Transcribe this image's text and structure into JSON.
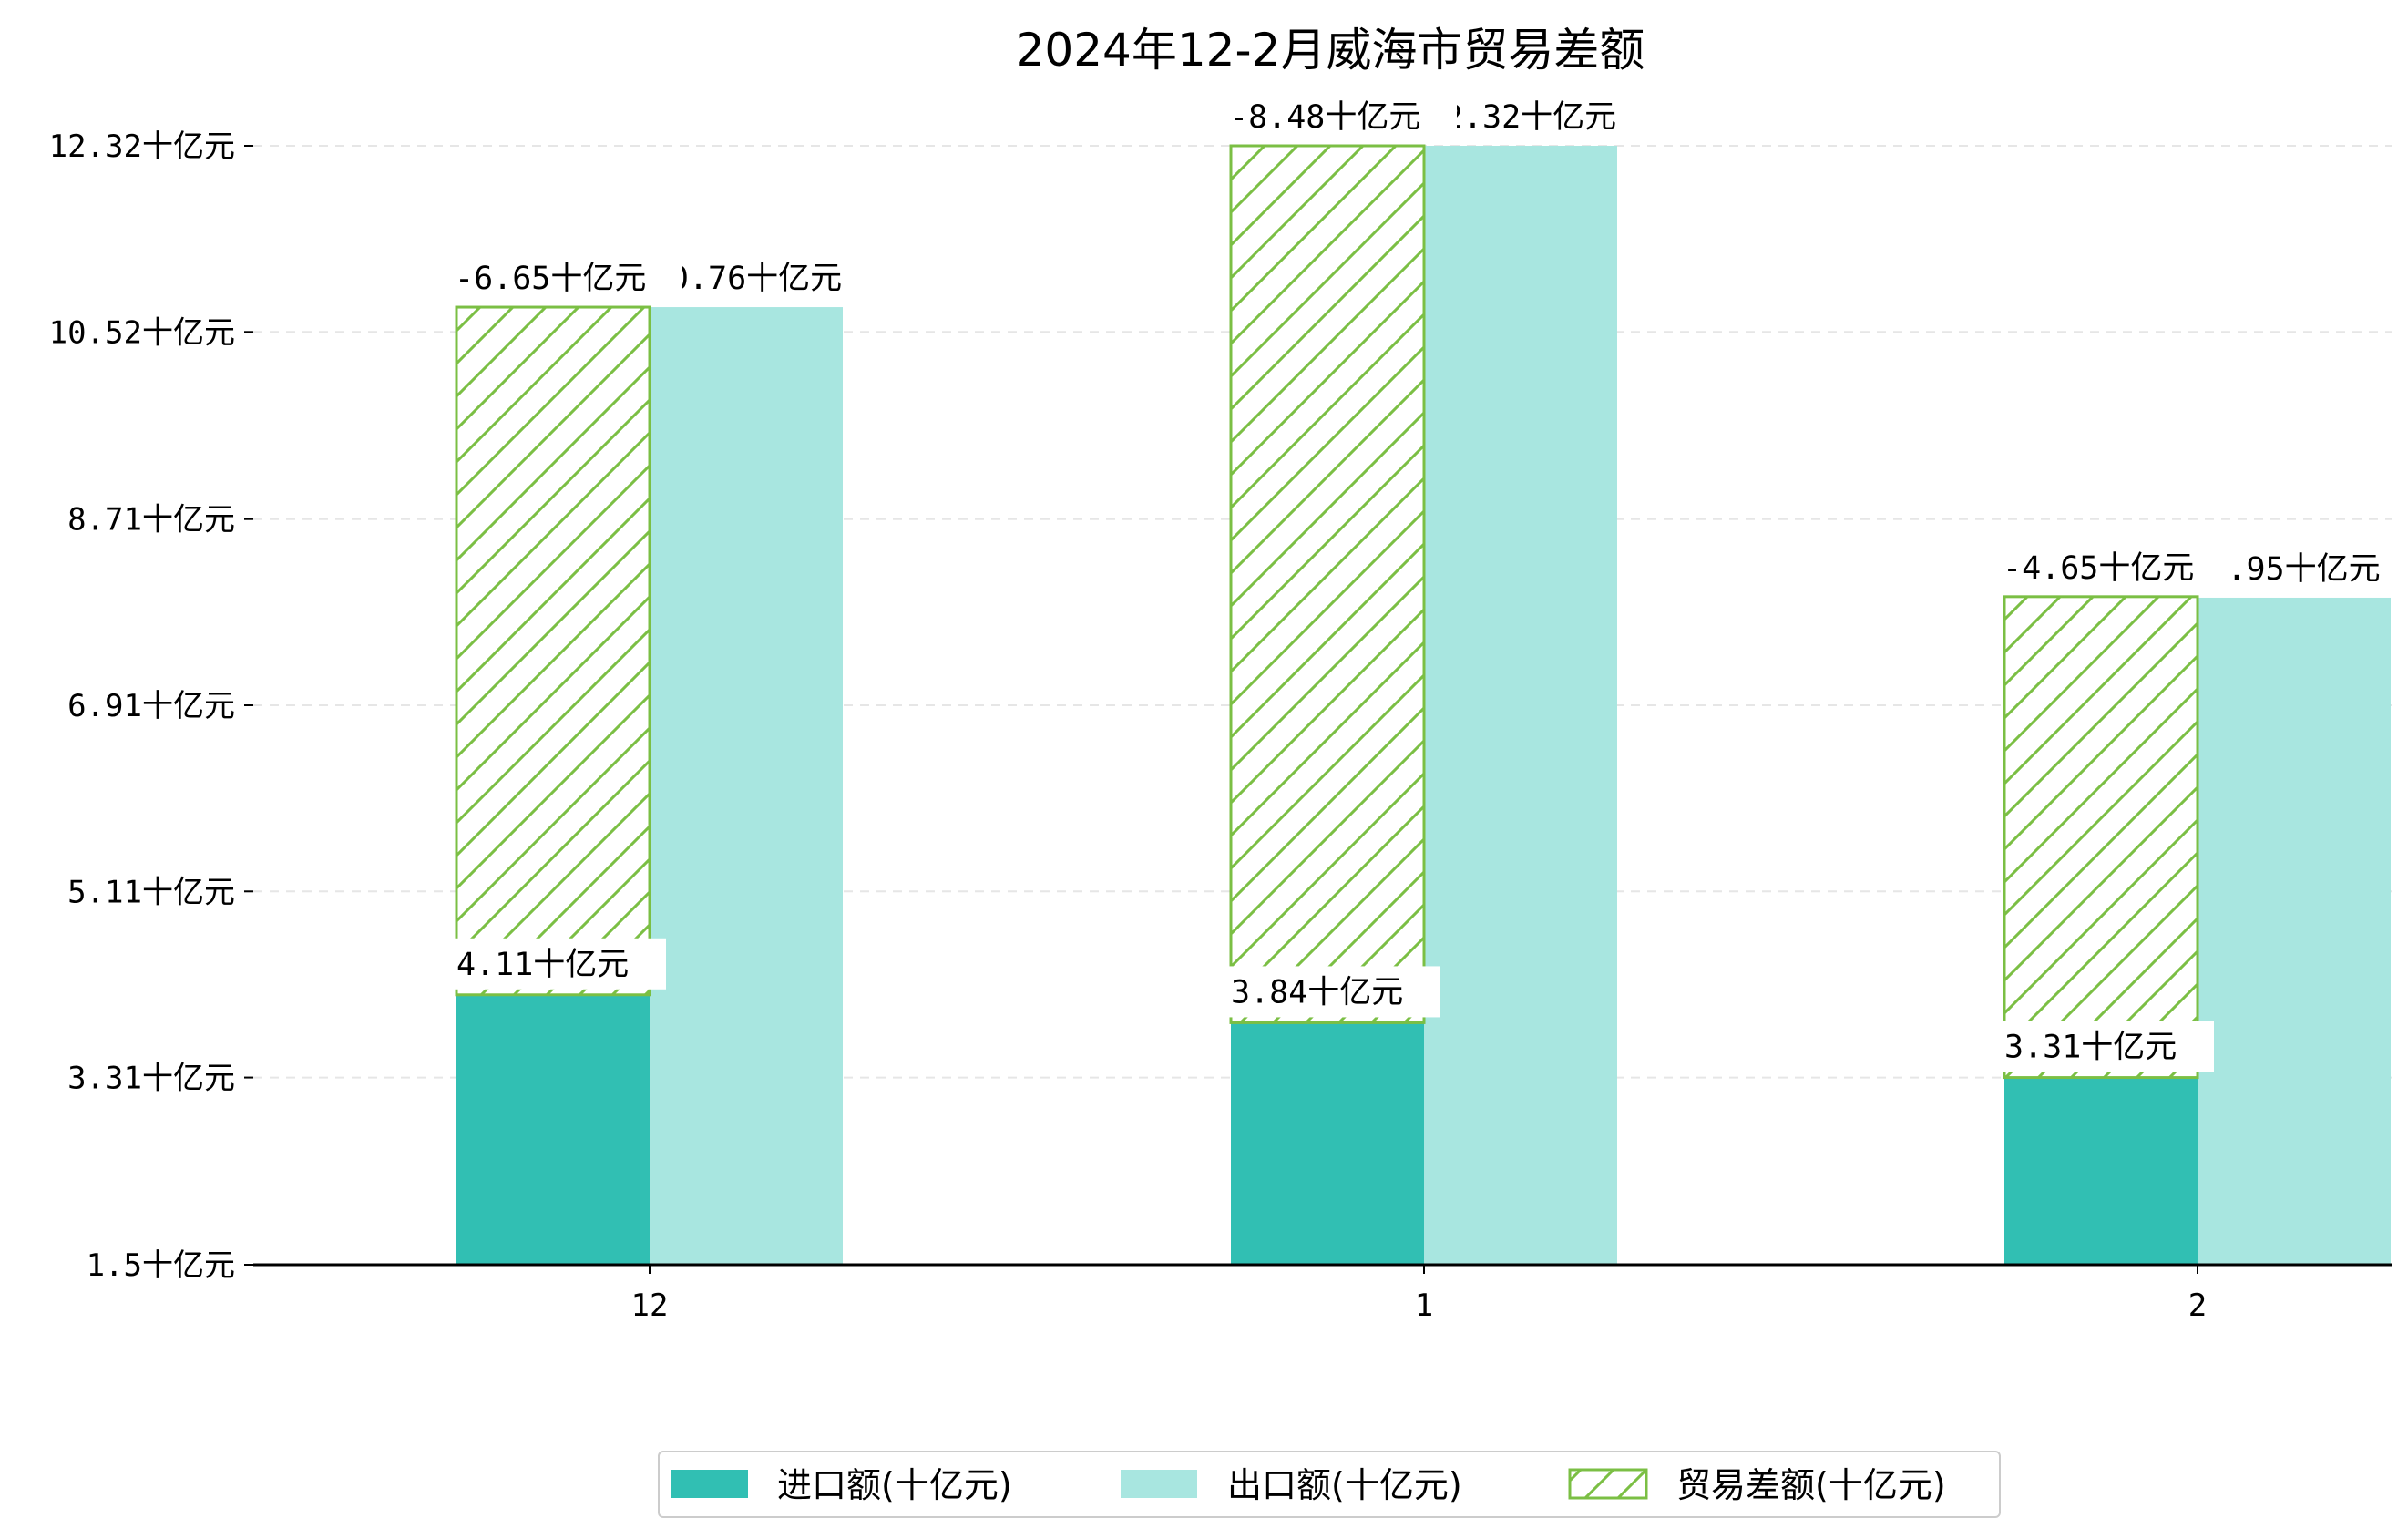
{
  "chart_data": {
    "type": "bar",
    "title": "2024年12-2月威海市贸易差额",
    "xlabel": "",
    "ylabel": "",
    "categories": [
      "12",
      "1",
      "2"
    ],
    "y_ticks": [
      "1.5十亿元",
      "3.31十亿元",
      "5.11十亿元",
      "6.91十亿元",
      "8.71十亿元",
      "10.52十亿元",
      "12.32十亿元"
    ],
    "y_tick_values": [
      1.5,
      3.31,
      5.11,
      6.91,
      8.71,
      10.52,
      12.32
    ],
    "ylim": [
      1.5,
      12.32
    ],
    "grid": "horizontal dashed",
    "legend_position": "bottom-center",
    "series": [
      {
        "name": "进口额(十亿元)",
        "values": [
          4.11,
          3.84,
          3.31
        ],
        "labels": [
          "4.11十亿元",
          "3.84十亿元",
          "3.31十亿元"
        ],
        "color": "#31bfb3"
      },
      {
        "name": "出口额(十亿元)",
        "values": [
          10.76,
          12.32,
          7.95
        ],
        "labels": [
          "10.76十亿元",
          "12.32十亿元",
          "7.95十亿元"
        ],
        "color": "#a8e6e0"
      },
      {
        "name": "贸易差额(十亿元)",
        "values": [
          -6.65,
          -8.48,
          -4.65
        ],
        "labels": [
          "-6.65十亿元",
          "-8.48十亿元",
          "-4.65十亿元"
        ],
        "color": "#7bbf44"
      }
    ]
  }
}
